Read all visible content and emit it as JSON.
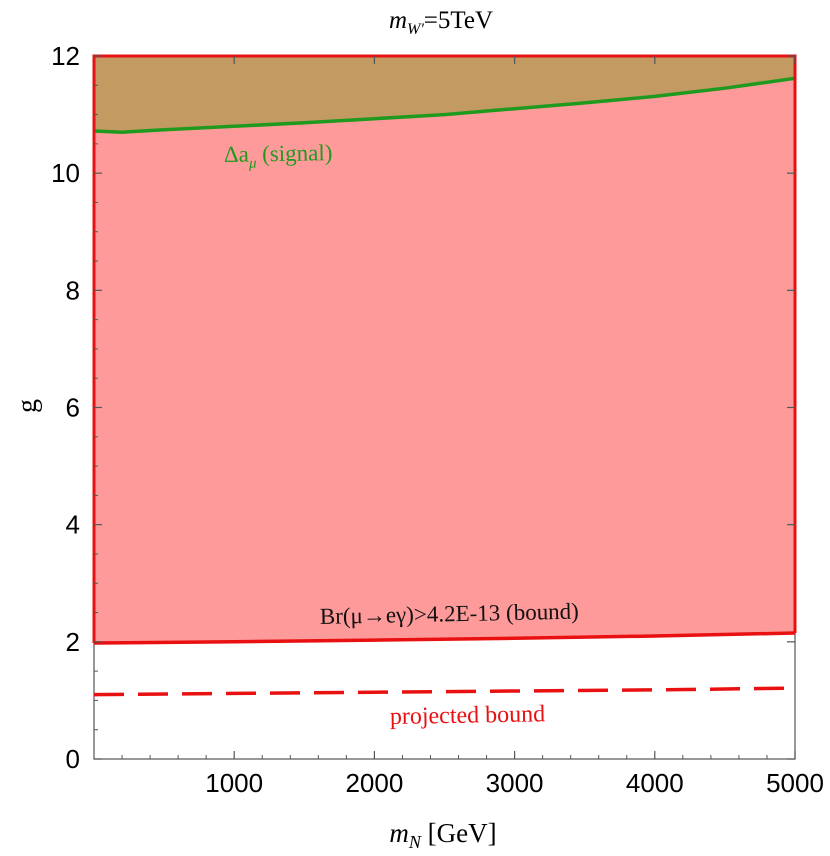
{
  "chart_data": {
    "type": "area",
    "title": "m",
    "title_sub": "W'",
    "title_rest": "=5TeV",
    "xlabel": "m",
    "xlabel_sub": "N",
    "xlabel_rest": " [GeV]",
    "ylabel": "g",
    "xlim": [
      0,
      5000
    ],
    "ylim": [
      0,
      12
    ],
    "xticks": [
      1000,
      2000,
      3000,
      4000,
      5000
    ],
    "yticks": [
      0,
      2,
      4,
      6,
      8,
      10,
      12
    ],
    "grid": false,
    "series": [
      {
        "name": "Δa_μ (signal)",
        "label_main": "Δa",
        "label_sub": "μ",
        "label_rest": " (signal)",
        "color": "#1f9a1f",
        "style": "solid",
        "x": [
          0,
          200,
          500,
          1000,
          1500,
          2000,
          2500,
          3000,
          3500,
          4000,
          4500,
          5000
        ],
        "y": [
          10.72,
          10.7,
          10.74,
          10.8,
          10.86,
          10.93,
          11.0,
          11.1,
          11.2,
          11.31,
          11.45,
          11.62
        ]
      },
      {
        "name": "Br(μ→eγ)>4.2E-13 (bound)",
        "color": "#e81010",
        "style": "solid",
        "x": [
          0,
          1000,
          2000,
          3000,
          4000,
          5000
        ],
        "y": [
          1.98,
          2.0,
          2.03,
          2.06,
          2.1,
          2.15
        ]
      },
      {
        "name": "projected bound",
        "color": "#e81010",
        "style": "dashed",
        "x": [
          0,
          1000,
          2000,
          3000,
          4000,
          5000
        ],
        "y": [
          1.1,
          1.12,
          1.14,
          1.16,
          1.18,
          1.21
        ]
      }
    ],
    "regions": [
      {
        "color": "#ff9a9a",
        "lower": "bound",
        "upper": "top"
      },
      {
        "color": "#c29a62",
        "lower": "signal",
        "upper": "top"
      }
    ]
  }
}
